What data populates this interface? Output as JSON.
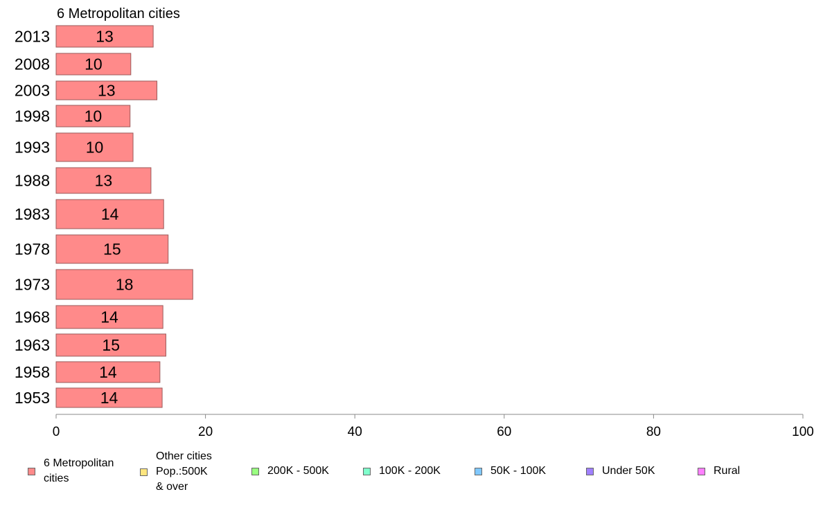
{
  "chart_data": {
    "type": "bar",
    "orientation": "horizontal",
    "title": "6 Metropolitan cities",
    "categories": [
      "2013",
      "2008",
      "2003",
      "1998",
      "1993",
      "1988",
      "1983",
      "1978",
      "1973",
      "1968",
      "1963",
      "1958",
      "1953"
    ],
    "series": [
      {
        "values": [
          13,
          10,
          13.5,
          9.9,
          10.3,
          12.7,
          14.4,
          15,
          18.3,
          14.3,
          14.7,
          13.9,
          14.2
        ],
        "labels": [
          "13",
          "10",
          "13",
          "10",
          "10",
          "13",
          "14",
          "15",
          "18",
          "14",
          "15",
          "14",
          "14"
        ],
        "color": "#ff8a8a"
      }
    ],
    "xlim": [
      0,
      100
    ],
    "xticks": [
      "0",
      "20",
      "40",
      "60",
      "80",
      "100"
    ],
    "grid": false,
    "legend_placement": "bottom"
  },
  "legend": [
    {
      "label": "6 Metropolitan\n cities",
      "color": "#ff8a8a"
    },
    {
      "label": "Other cities\nPop.:500K\n & over",
      "color": "#ffe680"
    },
    {
      "label": "200K - 500K",
      "color": "#99ff80"
    },
    {
      "label": "100K - 200K",
      "color": "#80ffcc"
    },
    {
      "label": "50K - 100K",
      "color": "#80c8ff"
    },
    {
      "label": "Under 50K",
      "color": "#a080ff"
    },
    {
      "label": "Rural",
      "color": "#ff80ff"
    }
  ]
}
